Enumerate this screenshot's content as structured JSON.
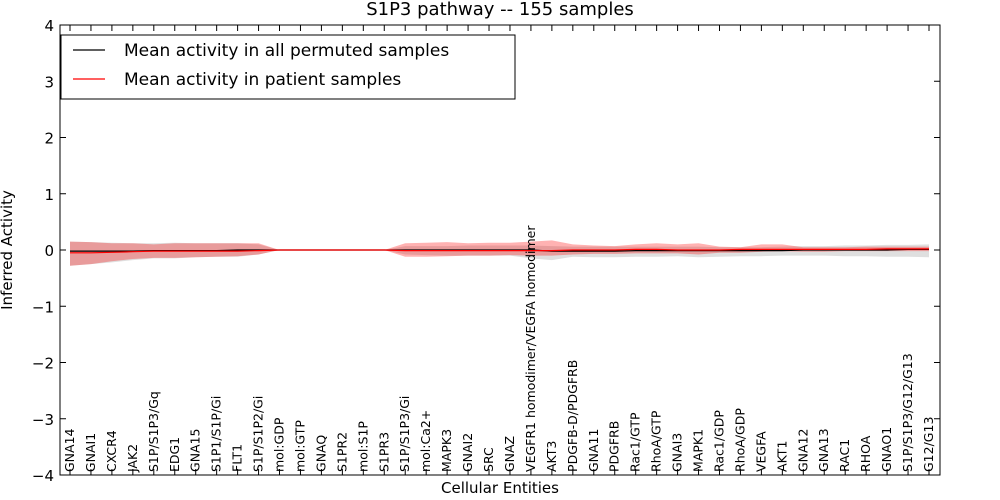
{
  "chart_data": {
    "type": "line",
    "title": "S1P3 pathway -- 155 samples",
    "xlabel": "Cellular Entities",
    "ylabel": "Inferred Activity",
    "ylim": [
      -4,
      4
    ],
    "yticks": [
      -4,
      -3,
      -2,
      -1,
      0,
      1,
      2,
      3,
      4
    ],
    "ytick_labels": [
      "−4",
      "−3",
      "−2",
      "−1",
      "0",
      "1",
      "2",
      "3",
      "4"
    ],
    "legend_position": "top-left",
    "categories": [
      "GNA14",
      "GNAI1",
      "CXCR4",
      "JAK2",
      "S1P/S1P3/Gq",
      "EDG1",
      "GNA15",
      "S1P1/S1P/Gi",
      "FLT1",
      "S1P/S1P2/Gi",
      "mol:GDP",
      "mol:GTP",
      "GNAQ",
      "S1PR2",
      "mol:S1P",
      "S1PR3",
      "S1P/S1P3/Gi",
      "mol:Ca2+",
      "MAPK3",
      "GNAI2",
      "SRC",
      "GNAZ",
      "VEGFR1 homodimer/VEGFA homodimer",
      "AKT3",
      "PDGFB-D/PDGFRB",
      "GNA11",
      "PDGFRB",
      "Rac1/GTP",
      "RhoA/GTP",
      "GNAI3",
      "MAPK1",
      "Rac1/GDP",
      "RhoA/GDP",
      "VEGFA",
      "AKT1",
      "GNA12",
      "GNA13",
      "RAC1",
      "RHOA",
      "GNAO1",
      "S1P/S1P3/G12/G13",
      "G12/G13"
    ],
    "series": [
      {
        "name": "Mean activity in all permuted samples",
        "color": "#000000",
        "band_color": "#bfbfbf",
        "values": [
          -0.02,
          -0.02,
          -0.02,
          -0.02,
          -0.01,
          -0.01,
          -0.01,
          -0.01,
          0,
          0,
          0,
          0,
          0,
          0,
          0,
          0,
          0,
          0,
          0,
          0,
          0,
          0,
          0,
          -0.02,
          -0.02,
          -0.02,
          -0.02,
          -0.01,
          -0.01,
          -0.01,
          -0.01,
          -0.01,
          -0.01,
          -0.01,
          -0.01,
          0,
          0,
          0,
          0,
          0,
          0.01,
          0.01
        ],
        "upper": [
          0.15,
          0.14,
          0.13,
          0.12,
          0.12,
          0.13,
          0.12,
          0.12,
          0.12,
          0.1,
          0,
          0,
          0,
          0,
          0,
          0,
          0.07,
          0.07,
          0.07,
          0.08,
          0.08,
          0.08,
          0.08,
          0.07,
          0.06,
          0.06,
          0.06,
          0.06,
          0.06,
          0.06,
          0.06,
          0.05,
          0.05,
          0.05,
          0.06,
          0.07,
          0.07,
          0.08,
          0.08,
          0.09,
          0.09,
          0.1
        ],
        "lower": [
          -0.28,
          -0.25,
          -0.22,
          -0.18,
          -0.15,
          -0.15,
          -0.13,
          -0.12,
          -0.12,
          -0.08,
          0,
          0,
          0,
          0,
          0,
          0,
          -0.08,
          -0.09,
          -0.1,
          -0.1,
          -0.1,
          -0.1,
          -0.15,
          -0.18,
          -0.12,
          -0.13,
          -0.13,
          -0.12,
          -0.12,
          -0.11,
          -0.13,
          -0.12,
          -0.11,
          -0.11,
          -0.1,
          -0.1,
          -0.1,
          -0.11,
          -0.11,
          -0.12,
          -0.12,
          -0.13
        ]
      },
      {
        "name": "Mean activity in patient samples",
        "color": "#ff0000",
        "band_color": "#ff0000",
        "values": [
          -0.05,
          -0.05,
          -0.04,
          -0.03,
          -0.02,
          -0.02,
          -0.02,
          -0.02,
          -0.02,
          -0.01,
          0,
          0,
          0,
          0,
          0,
          0,
          -0.01,
          -0.01,
          -0.01,
          -0.01,
          -0.01,
          -0.01,
          -0.01,
          -0.01,
          0,
          0,
          0,
          0.01,
          0.01,
          0,
          0,
          0,
          0.01,
          0.01,
          0.01,
          0.01,
          0.01,
          0.01,
          0.01,
          0.02,
          0.02,
          0.02
        ],
        "upper": [
          0.15,
          0.14,
          0.12,
          0.12,
          0.1,
          0.12,
          0.12,
          0.12,
          0.12,
          0.12,
          0,
          0,
          0,
          0,
          0,
          0,
          0.12,
          0.13,
          0.14,
          0.12,
          0.13,
          0.13,
          0.15,
          0.17,
          0.1,
          0.08,
          0.07,
          0.1,
          0.12,
          0.1,
          0.12,
          0.06,
          0.05,
          0.1,
          0.1,
          0.05,
          0.05,
          0.05,
          0.06,
          0.06,
          0.06,
          0.06
        ],
        "lower": [
          -0.28,
          -0.25,
          -0.2,
          -0.16,
          -0.14,
          -0.14,
          -0.13,
          -0.12,
          -0.11,
          -0.08,
          0,
          0,
          0,
          0,
          0,
          0,
          -0.12,
          -0.12,
          -0.11,
          -0.1,
          -0.1,
          -0.09,
          -0.1,
          -0.1,
          -0.08,
          -0.07,
          -0.07,
          -0.06,
          -0.06,
          -0.06,
          -0.08,
          -0.05,
          -0.05,
          -0.03,
          -0.02,
          -0.03,
          -0.03,
          -0.02,
          -0.02,
          -0.02,
          -0.02,
          -0.02
        ]
      }
    ]
  }
}
